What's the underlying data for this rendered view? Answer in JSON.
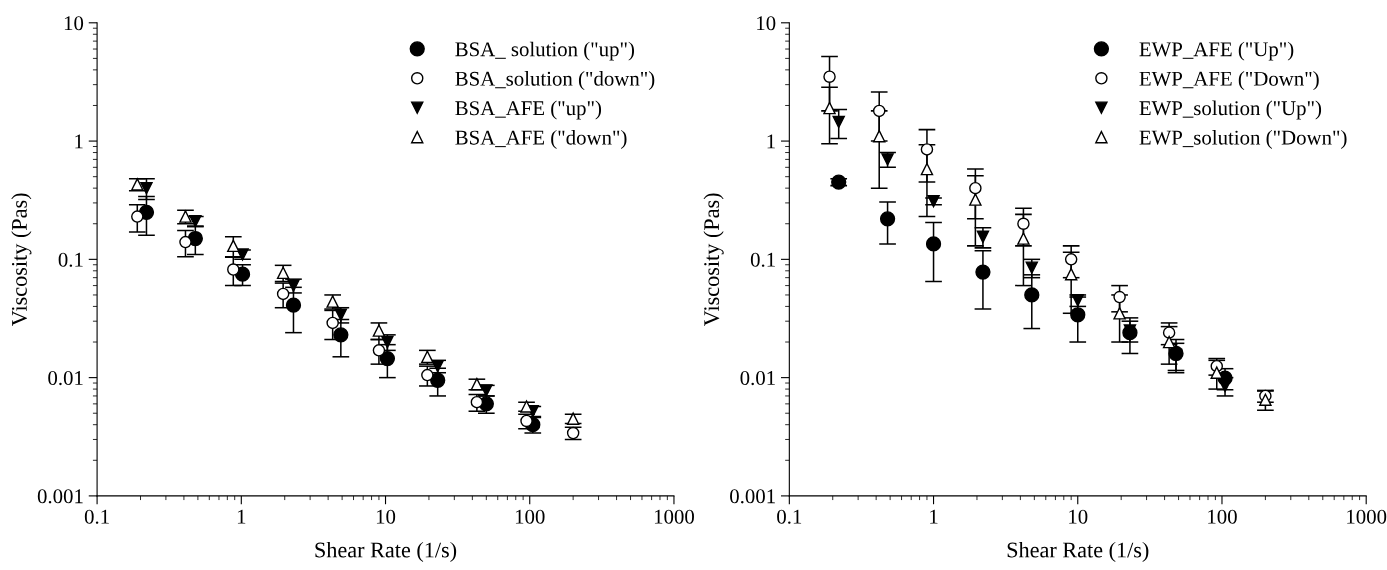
{
  "chart_data": [
    {
      "type": "scatter",
      "xlabel": "Shear Rate (1/s)",
      "ylabel": "Viscosity (Pas)",
      "log": "xy",
      "xlim": [
        0.1,
        1000
      ],
      "ylim": [
        0.001,
        10
      ],
      "xticks": [
        0.1,
        1,
        10,
        100,
        1000
      ],
      "yticks": [
        0.001,
        0.01,
        0.1,
        1,
        10
      ],
      "grid": false,
      "legend": "top right",
      "series": [
        {
          "name": "BSA_ solution (\"up\")",
          "color": "#000000",
          "marker": "circle",
          "x": [
            0.22,
            0.48,
            1.02,
            2.3,
            4.9,
            10.3,
            23,
            50,
            105
          ],
          "values": [
            0.25,
            0.15,
            0.075,
            0.041,
            0.023,
            0.0145,
            0.0095,
            0.006,
            0.004
          ],
          "errors": [
            0.09,
            0.04,
            0.015,
            0.017,
            0.008,
            0.0045,
            0.0025,
            0.001,
            0.0006
          ]
        },
        {
          "name": "BSA_solution (\"down\")",
          "color": "#000000",
          "marker": "circle-open",
          "x": [
            0.19,
            0.41,
            0.88,
            1.95,
            4.3,
            9,
            19.5,
            43,
            95,
            200
          ],
          "values": [
            0.23,
            0.14,
            0.082,
            0.051,
            0.029,
            0.017,
            0.0105,
            0.0062,
            0.0043,
            0.0034
          ],
          "errors": [
            0.06,
            0.035,
            0.022,
            0.012,
            0.008,
            0.004,
            0.002,
            0.001,
            0.0006,
            0.0004
          ]
        },
        {
          "name": "BSA_AFE (\"up\")",
          "color": "#000000",
          "marker": "triangle-down",
          "x": [
            0.22,
            0.48,
            1.02,
            2.3,
            4.9,
            10.3,
            23,
            50,
            105
          ],
          "values": [
            0.4,
            0.21,
            0.11,
            0.06,
            0.034,
            0.02,
            0.0125,
            0.0078,
            0.0052
          ],
          "errors": [
            0.08,
            0.02,
            0.01,
            0.008,
            0.005,
            0.003,
            0.0015,
            0.0008,
            0.0005
          ]
        },
        {
          "name": "BSA_AFE (\"down\")",
          "color": "#000000",
          "marker": "triangle-open",
          "x": [
            0.19,
            0.41,
            0.88,
            1.95,
            4.3,
            9,
            19.5,
            43,
            95,
            200
          ],
          "values": [
            0.43,
            0.23,
            0.13,
            0.077,
            0.044,
            0.025,
            0.015,
            0.0088,
            0.0057,
            0.0045
          ],
          "errors": [
            0.05,
            0.03,
            0.025,
            0.012,
            0.006,
            0.004,
            0.002,
            0.0009,
            0.0005,
            0.0004
          ]
        }
      ]
    },
    {
      "type": "scatter",
      "xlabel": "Shear Rate (1/s)",
      "ylabel": "Viscosity (Pas)",
      "log": "xy",
      "xlim": [
        0.1,
        1000
      ],
      "ylim": [
        0.001,
        10
      ],
      "xticks": [
        0.1,
        1,
        10,
        100,
        1000
      ],
      "yticks": [
        0.001,
        0.01,
        0.1,
        1,
        10
      ],
      "grid": false,
      "legend": "top right",
      "series": [
        {
          "name": "EWP_AFE (\"Up\")",
          "color": "#000000",
          "marker": "circle",
          "x": [
            0.22,
            0.48,
            1.0,
            2.2,
            4.8,
            10,
            23,
            48,
            105
          ],
          "values": [
            0.45,
            0.22,
            0.135,
            0.078,
            0.05,
            0.034,
            0.024,
            0.016,
            0.0099
          ],
          "errors": [
            0.03,
            0.085,
            0.07,
            0.04,
            0.024,
            0.014,
            0.008,
            0.005,
            0.002
          ]
        },
        {
          "name": "EWP_AFE (\"Down\")",
          "color": "#000000",
          "marker": "circle-open",
          "x": [
            0.19,
            0.42,
            0.9,
            1.95,
            4.2,
            9,
            19.5,
            43,
            92,
            200
          ],
          "values": [
            3.5,
            1.8,
            0.85,
            0.4,
            0.2,
            0.1,
            0.048,
            0.024,
            0.0125,
            0.007
          ],
          "errors": [
            1.7,
            0.8,
            0.4,
            0.18,
            0.07,
            0.03,
            0.012,
            0.005,
            0.002,
            0.0008
          ]
        },
        {
          "name": "EWP_solution (\"Up\")",
          "color": "#000000",
          "marker": "triangle-down",
          "x": [
            0.22,
            0.48,
            1.0,
            2.2,
            4.8,
            10,
            23,
            48,
            105
          ],
          "values": [
            1.45,
            0.7,
            0.31,
            0.155,
            0.085,
            0.045,
            0.025,
            0.0155,
            0.0085
          ],
          "errors": [
            0.4,
            0.1,
            0.02,
            0.03,
            0.015,
            0.005,
            0.005,
            0.004,
            0.0015
          ]
        },
        {
          "name": "EWP_solution (\"Down\")",
          "color": "#000000",
          "marker": "triangle-open",
          "x": [
            0.19,
            0.42,
            0.9,
            1.95,
            4.2,
            9,
            19.5,
            43,
            92,
            200
          ],
          "values": [
            1.9,
            1.1,
            0.58,
            0.32,
            0.15,
            0.075,
            0.035,
            0.02,
            0.011,
            0.0065
          ],
          "errors": [
            0.95,
            0.7,
            0.35,
            0.19,
            0.09,
            0.04,
            0.015,
            0.007,
            0.003,
            0.0012
          ]
        }
      ]
    }
  ]
}
